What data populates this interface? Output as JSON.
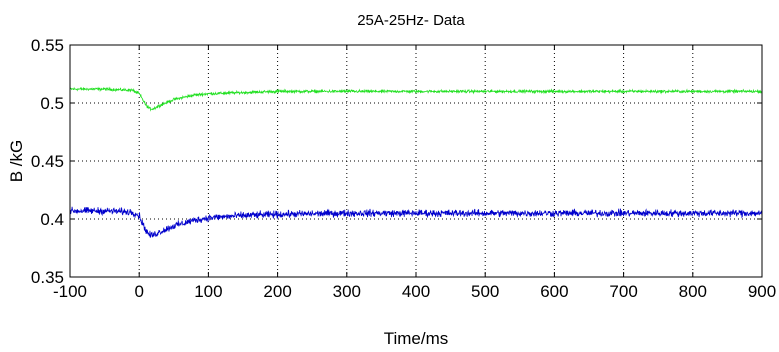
{
  "chart_data": {
    "type": "line",
    "title": "25A-25Hz- Data",
    "xlabel": "Time/ms",
    "ylabel": "B /kG",
    "xlim": [
      -100,
      900
    ],
    "ylim": [
      0.35,
      0.55
    ],
    "x_ticks": [
      -100,
      0,
      100,
      200,
      300,
      400,
      500,
      600,
      700,
      800,
      900
    ],
    "x_tick_labels": [
      "-100",
      "0",
      "100",
      "200",
      "300",
      "400",
      "500",
      "600",
      "700",
      "800",
      "900"
    ],
    "y_ticks": [
      0.35,
      0.4,
      0.45,
      0.5,
      0.55
    ],
    "y_tick_labels": [
      "0.35",
      "0.4",
      "0.45",
      "0.5",
      "0.55"
    ],
    "grid": true,
    "series": [
      {
        "color": "#22e022",
        "noise": 0.0018,
        "x": [
          -100,
          -50,
          -10,
          0,
          5,
          10,
          15,
          20,
          30,
          50,
          80,
          100,
          150,
          200,
          300,
          400,
          500,
          600,
          700,
          800,
          900
        ],
        "values": [
          0.512,
          0.512,
          0.511,
          0.508,
          0.503,
          0.498,
          0.495,
          0.495,
          0.498,
          0.503,
          0.507,
          0.508,
          0.509,
          0.51,
          0.51,
          0.51,
          0.51,
          0.51,
          0.51,
          0.51,
          0.51
        ]
      },
      {
        "color": "#0000cc",
        "noise": 0.0045,
        "x": [
          -100,
          -50,
          -10,
          0,
          5,
          10,
          15,
          20,
          30,
          50,
          80,
          100,
          150,
          200,
          300,
          400,
          500,
          600,
          700,
          800,
          900
        ],
        "values": [
          0.407,
          0.407,
          0.406,
          0.403,
          0.396,
          0.39,
          0.386,
          0.386,
          0.389,
          0.394,
          0.399,
          0.401,
          0.403,
          0.404,
          0.405,
          0.405,
          0.405,
          0.405,
          0.405,
          0.405,
          0.405
        ]
      }
    ]
  }
}
